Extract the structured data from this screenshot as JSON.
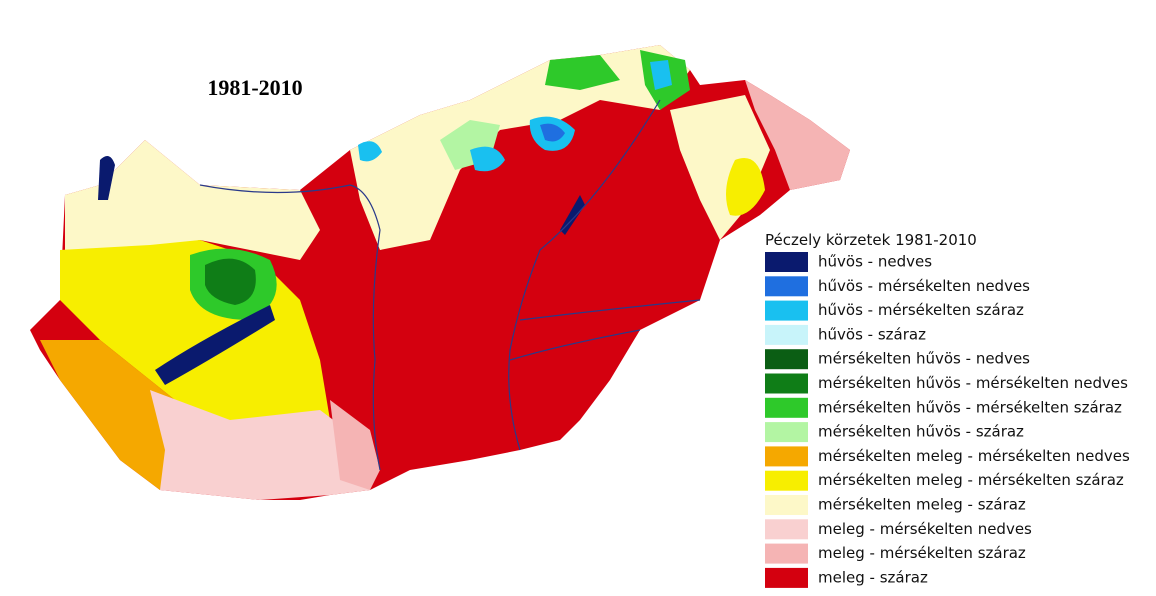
{
  "title": "1981-2010",
  "legend": {
    "title": "Péczely körzetek 1981-2010",
    "items": [
      {
        "label": "hűvös - nedves",
        "color": "#0a1a6e"
      },
      {
        "label": "hűvös - mérsékelten nedves",
        "color": "#1f6fe0"
      },
      {
        "label": "hűvös - mérsékelten száraz",
        "color": "#19c0f0"
      },
      {
        "label": "hűvös - száraz",
        "color": "#c8f4fa"
      },
      {
        "label": "mérsékelten hűvös - nedves",
        "color": "#0b5e14"
      },
      {
        "label": "mérsékelten hűvös - mérsékelten nedves",
        "color": "#0f7d17"
      },
      {
        "label": "mérsékelten hűvös - mérsékelten száraz",
        "color": "#2ec92a"
      },
      {
        "label": "mérsékelten hűvös -  száraz",
        "color": "#b3f5a3"
      },
      {
        "label": "mérsékelten meleg - mérsékelten nedves",
        "color": "#f5a800"
      },
      {
        "label": "mérsékelten meleg - mérsékelten száraz",
        "color": "#f7ee00"
      },
      {
        "label": "mérsékelten meleg - száraz",
        "color": "#fdf8c8"
      },
      {
        "label": "meleg - mérsékelten nedves",
        "color": "#f9d0d0"
      },
      {
        "label": "meleg - mérsékelten száraz",
        "color": "#f5b4b4"
      },
      {
        "label": "meleg - száraz",
        "color": "#d4000f"
      }
    ]
  }
}
